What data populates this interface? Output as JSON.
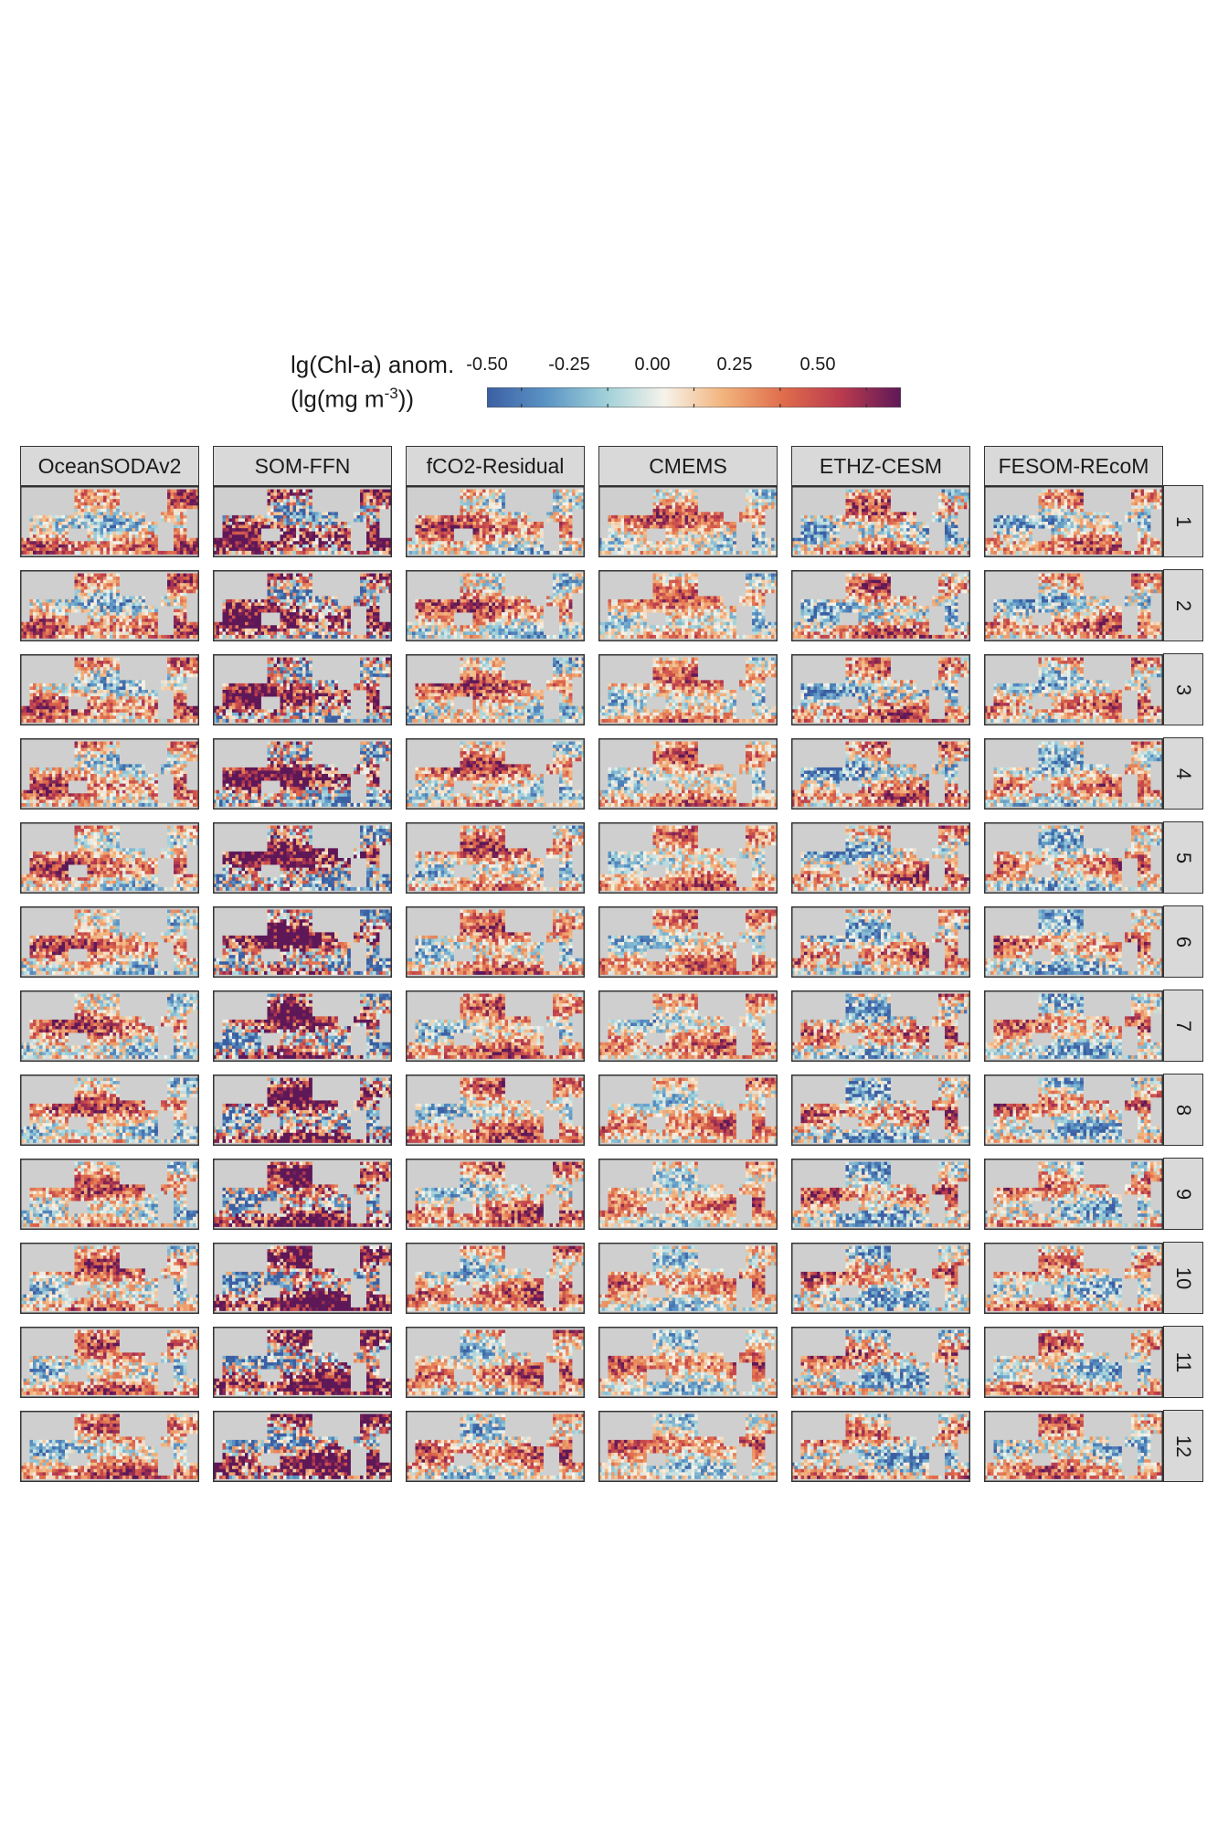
{
  "legend": {
    "title_line1": "lg(Chl-a) anom.",
    "title_line2_prefix": "(lg(mg m",
    "title_line2_sup": "-3",
    "title_line2_suffix": "))",
    "ticks": [
      "-0.50",
      "-0.25",
      "0.00",
      "0.25",
      "0.50"
    ]
  },
  "chart_data": {
    "type": "heatmap",
    "facet_grid": true,
    "columns": [
      "OceanSODAv2",
      "SOM-FFN",
      "fCO2-Residual",
      "CMEMS",
      "ETHZ-CESM",
      "FESOM-REcoM"
    ],
    "rows": [
      "1",
      "2",
      "3",
      "4",
      "5",
      "6",
      "7",
      "8",
      "9",
      "10",
      "11",
      "12"
    ],
    "value_range": [
      -0.6,
      0.6
    ],
    "colorbar_ticks": [
      -0.5,
      -0.25,
      0,
      0.25,
      0.5
    ],
    "colormap": [
      "#3b5fa3",
      "#5b94c4",
      "#9fd0d9",
      "#f6f3ea",
      "#f2b37c",
      "#e06d4c",
      "#b93a4e",
      "#5e1858"
    ],
    "land_color": "#cfcfcf",
    "panel_content": "global ocean maps of lg(Chl-a) anomaly per product (columns) and month (rows)"
  }
}
